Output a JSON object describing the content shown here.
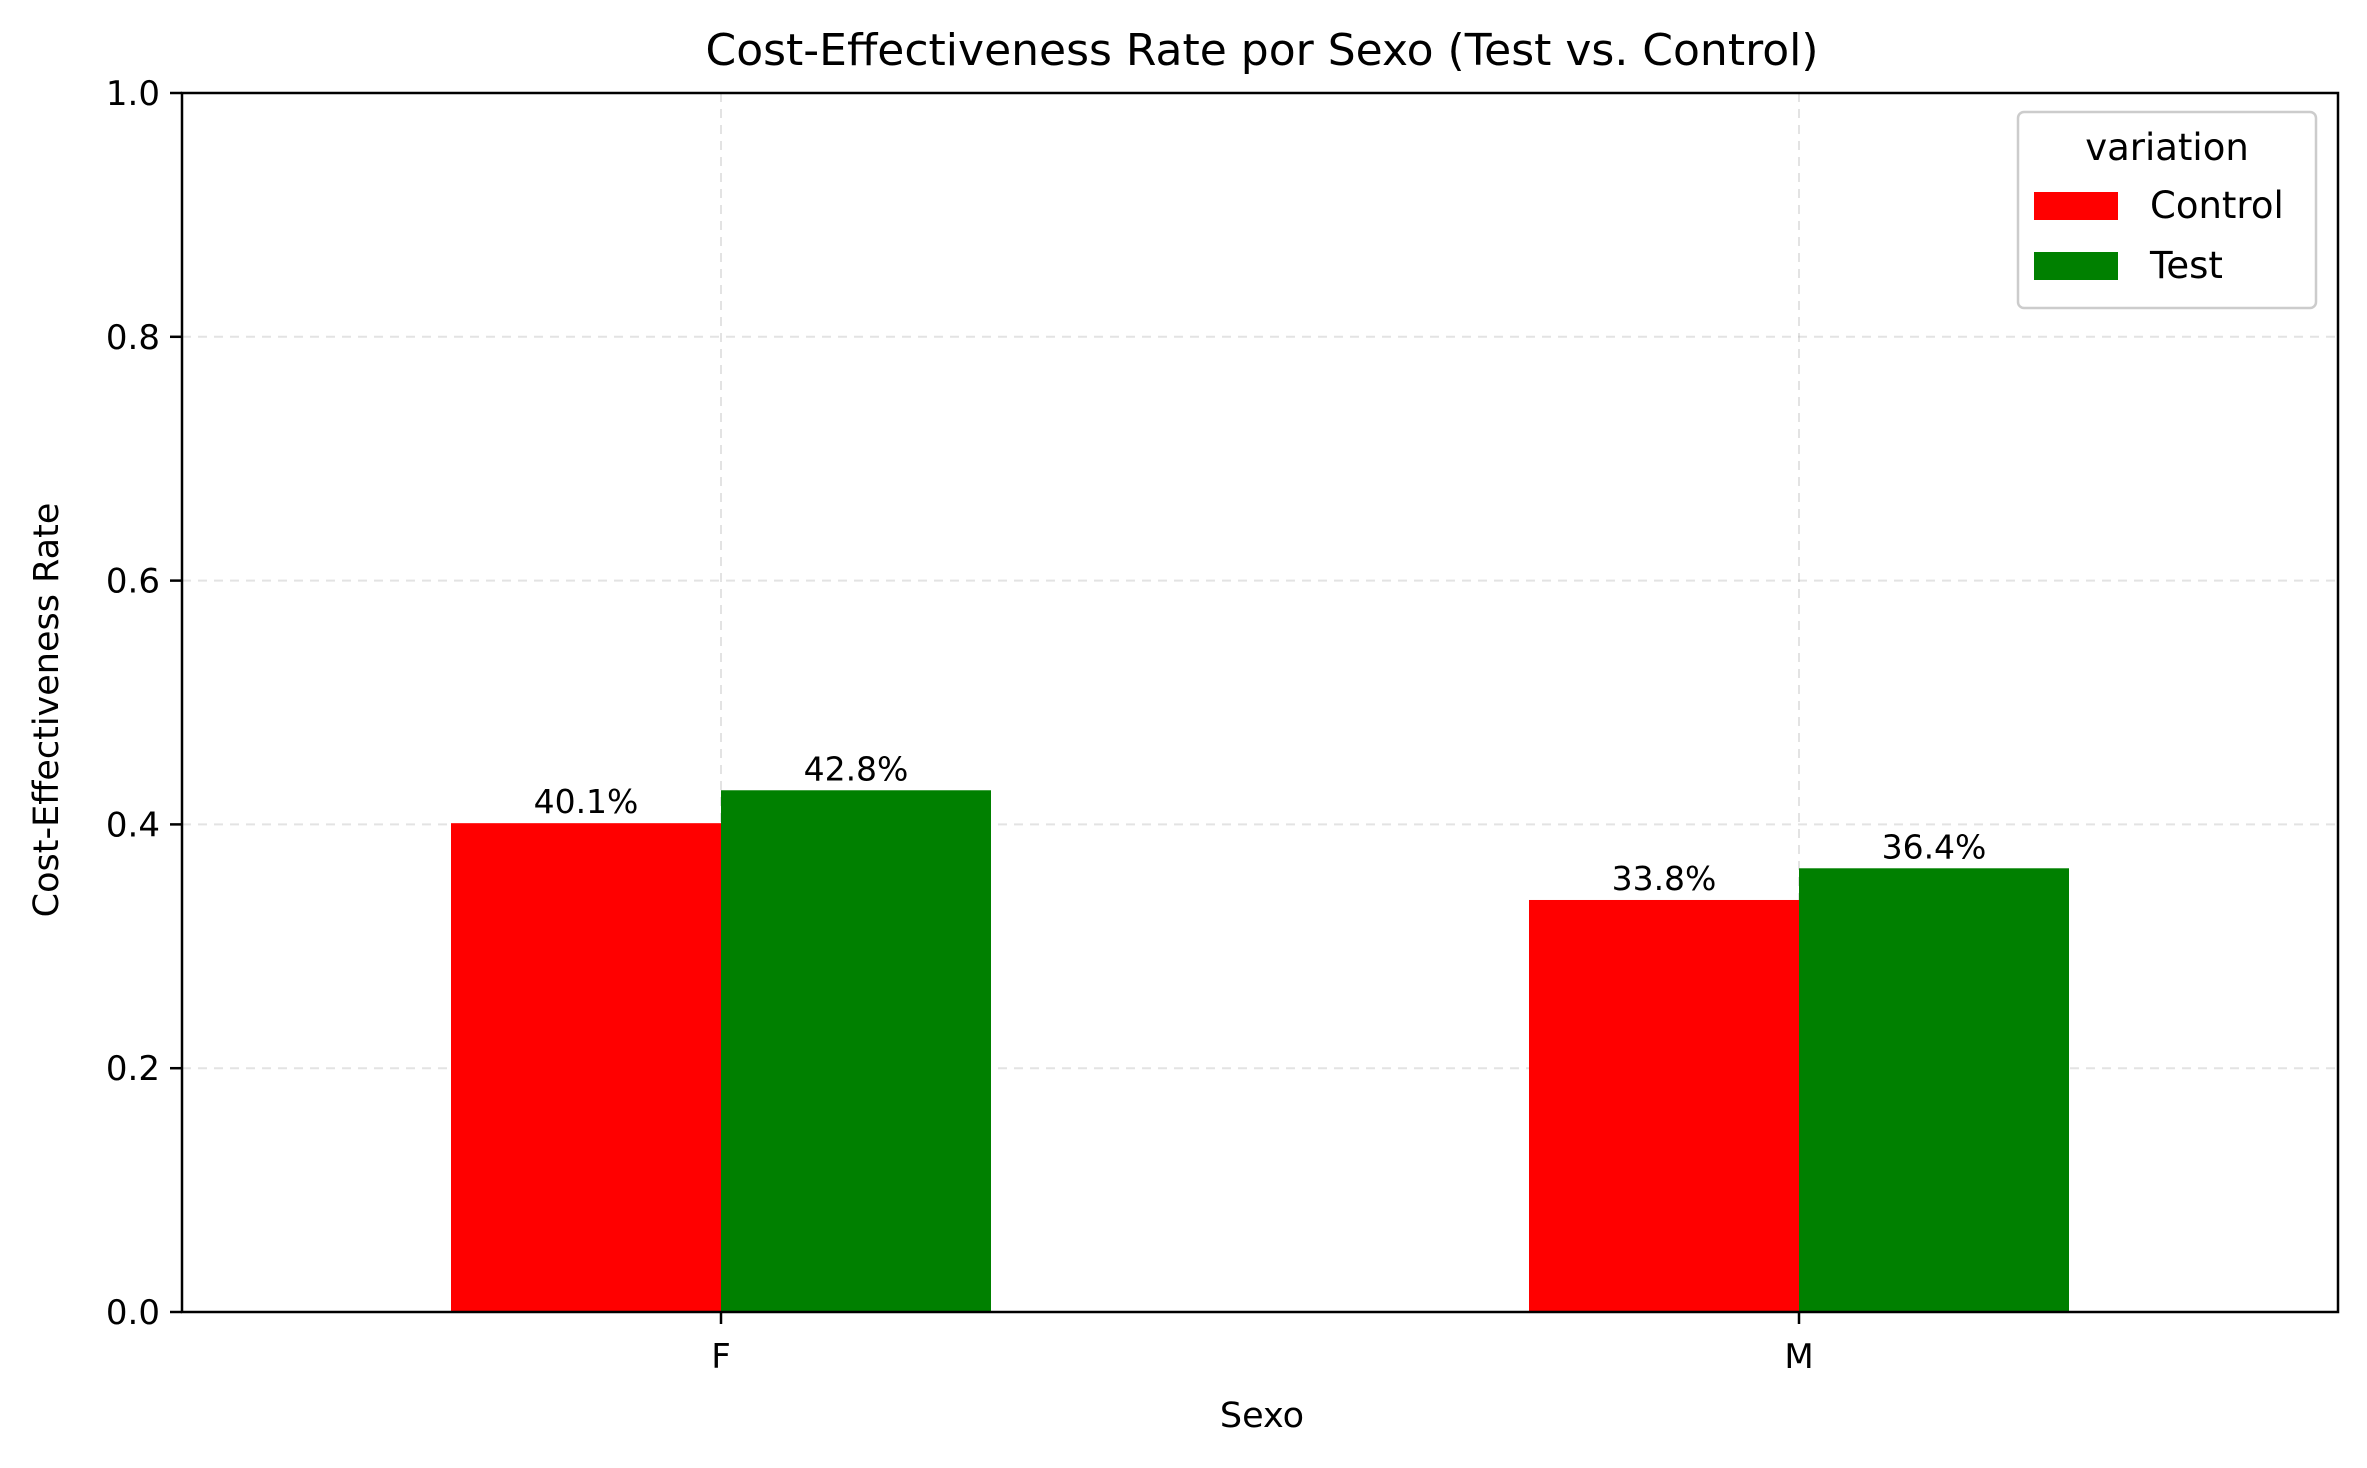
{
  "chart_data": {
    "type": "bar",
    "title": "Cost-Effectiveness Rate por Sexo (Test vs. Control)",
    "xlabel": "Sexo",
    "ylabel": "Cost-Effectiveness Rate",
    "categories": [
      "F",
      "M"
    ],
    "ylim": [
      0,
      1.0
    ],
    "yticks": [
      "0.0",
      "0.2",
      "0.4",
      "0.6",
      "0.8",
      "1.0"
    ],
    "grid": true,
    "legend": {
      "title": "variation",
      "placement": "top-right"
    },
    "series": [
      {
        "name": "Control",
        "color": "#ff0000",
        "values": [
          0.401,
          0.338
        ],
        "labels": [
          "40.1%",
          "33.8%"
        ]
      },
      {
        "name": "Test",
        "color": "#008000",
        "values": [
          0.428,
          0.364
        ],
        "labels": [
          "42.8%",
          "36.4%"
        ]
      }
    ]
  }
}
